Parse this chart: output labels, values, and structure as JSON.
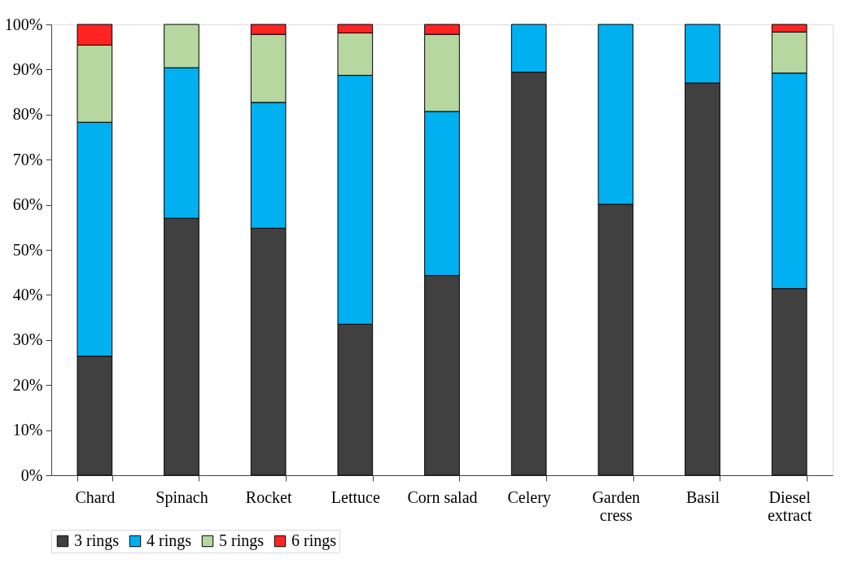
{
  "chart_data": {
    "type": "bar",
    "stacked": true,
    "categories": [
      "Chard",
      "Spinach",
      "Rocket",
      "Lettuce",
      "Corn salad",
      "Celery",
      "Garden\ncress",
      "Basil",
      "Diesel\nextract"
    ],
    "series": [
      {
        "name": "3 rings",
        "color": "#404040",
        "values": [
          26.4,
          57.0,
          54.8,
          33.5,
          44.3,
          89.4,
          60.1,
          87.0,
          41.4
        ]
      },
      {
        "name": "4 rings",
        "color": "#00b0f0",
        "values": [
          51.9,
          33.4,
          27.9,
          55.2,
          36.4,
          10.6,
          39.9,
          13.0,
          47.8
        ]
      },
      {
        "name": "5 rings",
        "color": "#b6d7a0",
        "values": [
          17.1,
          9.6,
          15.1,
          9.4,
          17.1,
          null,
          null,
          null,
          9.1
        ]
      },
      {
        "name": "6 rings",
        "color": "#ff2424",
        "values": [
          4.6,
          null,
          2.2,
          1.9,
          2.2,
          null,
          null,
          null,
          1.7
        ]
      }
    ],
    "ylim": [
      0,
      100
    ],
    "yticks": [
      {
        "value": 0,
        "label": "0%"
      },
      {
        "value": 10,
        "label": "10%"
      },
      {
        "value": 20,
        "label": "20%"
      },
      {
        "value": 30,
        "label": "30%"
      },
      {
        "value": 40,
        "label": "40%"
      },
      {
        "value": 50,
        "label": "50%"
      },
      {
        "value": 60,
        "label": "60%"
      },
      {
        "value": 70,
        "label": "70%"
      },
      {
        "value": 80,
        "label": "80%"
      },
      {
        "value": 90,
        "label": "90%"
      },
      {
        "value": 100,
        "label": "100%"
      }
    ],
    "grid": false,
    "legend": "bottom"
  }
}
